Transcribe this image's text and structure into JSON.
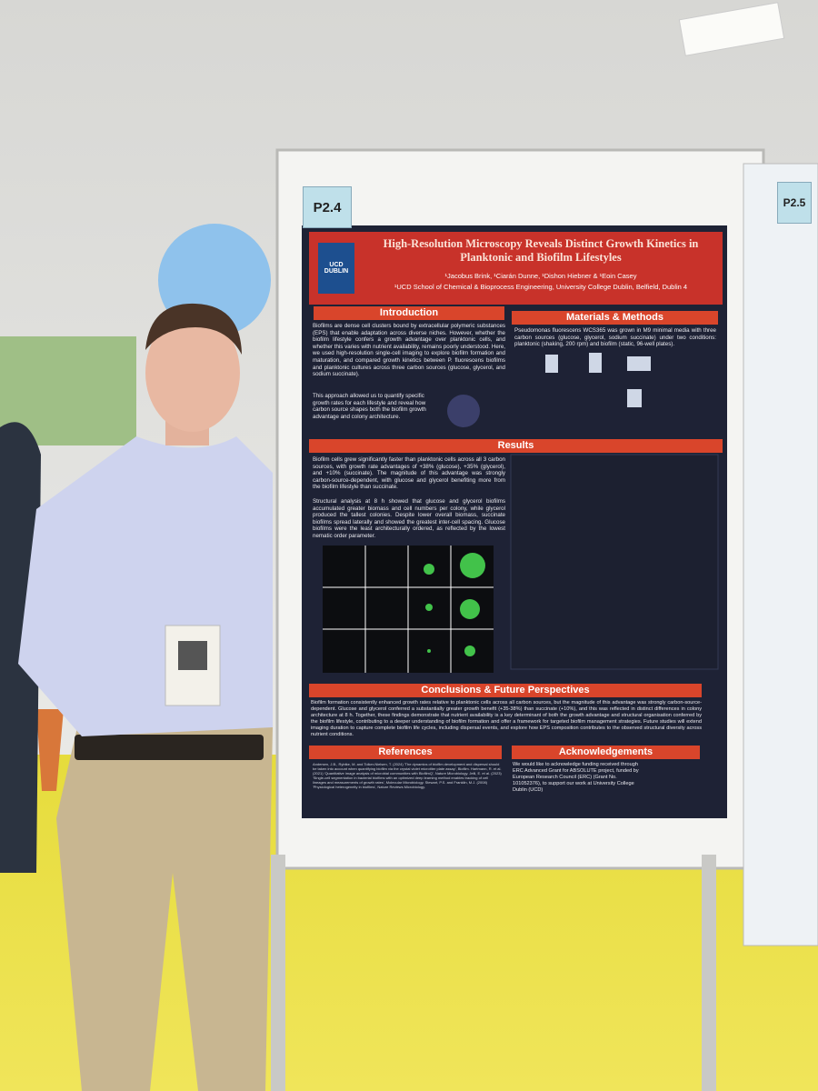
{
  "board_label": "P2.4",
  "neighbor_label": "P2.5",
  "poster": {
    "title": "High-Resolution Microscopy Reveals Distinct Growth Kinetics in Planktonic and Biofilm Lifestyles",
    "authors": "¹Jacobus Brink, ¹Ciarán Dunne, ¹Dishon Hiebner & ¹Eoin Casey",
    "affiliation": "¹UCD School of Chemical & Bioprocess Engineering, University College Dublin, Belfield, Dublin 4",
    "logo_text": "UCD DUBLIN",
    "introduction": {
      "heading": "Introduction",
      "text": "Biofilms are dense cell clusters bound by extracellular polymeric substances (EPS) that enable adaptation across diverse niches. However, whether the biofilm lifestyle confers a growth advantage over planktonic cells, and whether this varies with nutrient availability, remains poorly understood. Here, we used high-resolution single-cell imaging to explore biofilm formation and maturation, and compared growth kinetics between P. fluorescens biofilms and planktonic cultures across three carbon sources (glucose, glycerol, and sodium succinate).",
      "text2": "This approach allowed us to quantify specific growth rates for each lifestyle and reveal how carbon source shapes both the biofilm growth advantage and colony architecture."
    },
    "methods": {
      "heading": "Materials & Methods",
      "text": "Pseudomonas fluorescens WCS365 was grown in M9 minimal media with three carbon sources (glucose, glycerol, sodium succinate) under two conditions: planktonic (shaking, 200 rpm) and biofilm (static, 96-well plates)."
    },
    "results": {
      "heading": "Results",
      "text": "Biofilm cells grew significantly faster than planktonic cells across all 3 carbon sources, with growth rate advantages of +38% (glucose), +35% (glycerol), and +10% (succinate). The magnitude of this advantage was strongly carbon-source-dependent, with glucose and glycerol benefiting more from the biofilm lifestyle than succinate.",
      "text2": "Structural analysis at 8 h showed that glucose and glycerol biofilms accumulated greater biomass and cell numbers per colony, while glycerol produced the tallest colonies. Despite lower overall biomass, succinate biofilms spread laterally and showed the greatest inter-cell spacing. Glucose biofilms were the least architecturally ordered, as reflected by the lowest nematic order parameter."
    },
    "conclusions": {
      "heading": "Conclusions & Future Perspectives",
      "text": "Biofilm formation consistently enhanced growth rates relative to planktonic cells across all carbon sources, but the magnitude of this advantage was strongly carbon-source-dependent. Glucose and glycerol conferred a substantially greater growth benefit (+35-38%) than succinate (+10%), and this was reflected in distinct differences in colony architecture at 8 h. Together, these findings demonstrate that nutrient availability is a key determinant of both the growth advantage and structural organisation conferred by the biofilm lifestyle, contributing to a deeper understanding of biofilm formation and offer a framework for targeted biofilm management strategies. Future studies will extend imaging duration to capture complete biofilm life cycles, including dispersal events, and explore how EPS composition contributes to the observed structural diversity across nutrient conditions."
    },
    "references": {
      "heading": "References",
      "text": "Andersen, J.B., Rybtke, M. and Tolker-Nielsen, T. (2024) 'The dynamics of biofilm development and dispersal should be taken into account when quantifying biofilm via the crystal violet microtiter plate assay', Biofilm. Hartmann, R. et al. (2021) 'Quantitative image analysis of microbial communities with BiofilmQ', Nature Microbiology. Jelli, E. et al. (2023) 'Single-cell segmentation in bacterial biofilms with an optimized deep learning method enables tracking of cell lineages and measurements of growth rates', Molecular Microbiology. Stewart, P.S. and Franklin, M.J. (2008) 'Physiological heterogeneity in biofilms', Nature Reviews Microbiology."
    },
    "acknowledgements": {
      "heading": "Acknowledgements",
      "text": "We would like to acknowledge funding received through ERC Advanced Grant for ABSOLUTE project, funded by European Research Council (ERC) (Grant No. 101052376), to support our work at University College Dublin (UCD)"
    }
  }
}
